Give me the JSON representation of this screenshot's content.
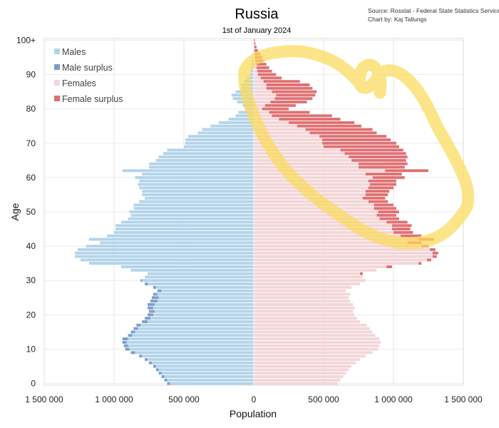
{
  "chart_data": {
    "type": "bar",
    "orientation": "horizontal",
    "title": "Russia",
    "subtitle": "1st of January 2024",
    "source_lines": [
      "Source: Rosstat - Federal State Statistics Service",
      "Chart by: Kaj Tallungs"
    ],
    "xlabel": "Population",
    "ylabel": "Age",
    "xlim": [
      -1500000,
      1500000
    ],
    "ylim": [
      0,
      100
    ],
    "x_ticks": [
      -1500000,
      -1000000,
      -500000,
      0,
      500000,
      1000000,
      1500000
    ],
    "x_tick_labels": [
      "1 500 000",
      "1 000 000",
      "500 000",
      "0",
      "500 000",
      "1 000 000",
      "1 500 000"
    ],
    "y_ticks": [
      0,
      10,
      20,
      30,
      40,
      50,
      60,
      70,
      80,
      90,
      100
    ],
    "y_tick_labels": [
      "0",
      "10",
      "20",
      "30",
      "40",
      "50",
      "60",
      "70",
      "80",
      "90",
      "100+"
    ],
    "grid": true,
    "legend_position": "top-left",
    "legend": [
      {
        "label": "Males",
        "color": "#b3d4ea"
      },
      {
        "label": "Male surplus",
        "color": "#7c9ec9"
      },
      {
        "label": "Females",
        "color": "#f3d6d8"
      },
      {
        "label": "Female surplus",
        "color": "#e07173"
      }
    ],
    "colors": {
      "males": "#b3d4ea",
      "male_surplus": "#7c9ec9",
      "females": "#f3d6d8",
      "female_surplus": "#e07173",
      "highlight": "#fbd95a"
    },
    "ages": [
      0,
      1,
      2,
      3,
      4,
      5,
      6,
      7,
      8,
      9,
      10,
      11,
      12,
      13,
      14,
      15,
      16,
      17,
      18,
      19,
      20,
      21,
      22,
      23,
      24,
      25,
      26,
      27,
      28,
      29,
      30,
      31,
      32,
      33,
      34,
      35,
      36,
      37,
      38,
      39,
      40,
      41,
      42,
      43,
      44,
      45,
      46,
      47,
      48,
      49,
      50,
      51,
      52,
      53,
      54,
      55,
      56,
      57,
      58,
      59,
      60,
      61,
      62,
      63,
      64,
      65,
      66,
      67,
      68,
      69,
      70,
      71,
      72,
      73,
      74,
      75,
      76,
      77,
      78,
      79,
      80,
      81,
      82,
      83,
      84,
      85,
      86,
      87,
      88,
      89,
      90,
      91,
      92,
      93,
      94,
      95,
      96,
      97,
      98,
      99,
      100
    ],
    "series": [
      {
        "name": "Males",
        "values": [
          620000,
          640000,
          660000,
          680000,
          700000,
          720000,
          750000,
          780000,
          820000,
          880000,
          920000,
          930000,
          940000,
          940000,
          900000,
          880000,
          860000,
          840000,
          800000,
          780000,
          760000,
          750000,
          760000,
          760000,
          740000,
          730000,
          720000,
          690000,
          720000,
          780000,
          810000,
          780000,
          760000,
          880000,
          950000,
          1180000,
          1240000,
          1280000,
          1280000,
          1260000,
          1200000,
          1100000,
          1180000,
          1050000,
          1000000,
          990000,
          990000,
          950000,
          900000,
          880000,
          890000,
          860000,
          860000,
          820000,
          780000,
          800000,
          800000,
          820000,
          830000,
          820000,
          850000,
          800000,
          940000,
          750000,
          750000,
          700000,
          680000,
          650000,
          620000,
          500000,
          490000,
          490000,
          470000,
          400000,
          370000,
          310000,
          250000,
          180000,
          130000,
          110000,
          60000,
          80000,
          120000,
          150000,
          160000,
          130000,
          90000,
          90000,
          70000,
          50000,
          30000,
          25000,
          20000,
          15000,
          12000,
          9000,
          7000,
          5000,
          4000,
          2500,
          2000
        ]
      },
      {
        "name": "Females",
        "values": [
          600000,
          620000,
          640000,
          660000,
          680000,
          700000,
          730000,
          760000,
          800000,
          850000,
          890000,
          900000,
          910000,
          900000,
          870000,
          850000,
          830000,
          810000,
          760000,
          740000,
          720000,
          710000,
          720000,
          710000,
          690000,
          680000,
          690000,
          660000,
          700000,
          760000,
          800000,
          780000,
          780000,
          880000,
          990000,
          1200000,
          1270000,
          1310000,
          1320000,
          1300000,
          1250000,
          1200000,
          1290000,
          1200000,
          1140000,
          1120000,
          1130000,
          1100000,
          1040000,
          1020000,
          1040000,
          1020000,
          1000000,
          960000,
          940000,
          960000,
          970000,
          1000000,
          1020000,
          1020000,
          1080000,
          1060000,
          1250000,
          1080000,
          1100000,
          1090000,
          1100000,
          1090000,
          1070000,
          1040000,
          1020000,
          980000,
          950000,
          880000,
          850000,
          770000,
          720000,
          620000,
          560000,
          400000,
          250000,
          300000,
          380000,
          420000,
          440000,
          450000,
          420000,
          400000,
          330000,
          200000,
          160000,
          130000,
          110000,
          90000,
          70000,
          60000,
          45000,
          30000,
          20000,
          12000,
          8000
        ]
      }
    ]
  }
}
